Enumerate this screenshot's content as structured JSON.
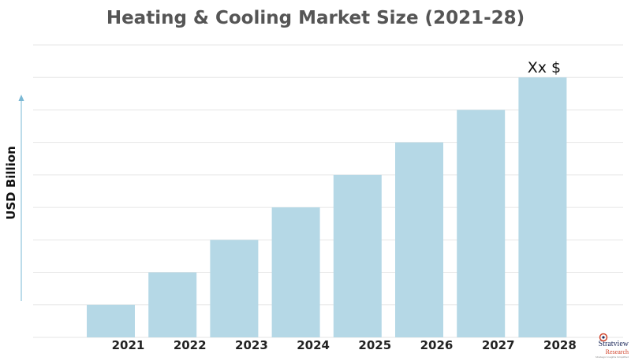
{
  "chart_data": {
    "type": "bar",
    "title": "Heating & Cooling Market Size (2021-28)",
    "xlabel": "",
    "ylabel": "USD Billion",
    "categories": [
      "2021",
      "2022",
      "2023",
      "2024",
      "2025",
      "2026",
      "2027",
      "2028"
    ],
    "values": [
      1,
      2,
      3,
      4,
      5,
      6,
      7,
      8
    ],
    "ylim": [
      0,
      9
    ],
    "grid": true,
    "y_tick_labels_shown": false,
    "annotations": [
      {
        "category": "2028",
        "text": "Xx $"
      }
    ],
    "colors": {
      "bar": "#b5d8e6",
      "grid": "#e6e6e6",
      "title": "#555555",
      "axis_arrow": "#7ab8d4"
    }
  },
  "logo": {
    "brand_line1": "Stratview",
    "brand_line2": "Research",
    "tagline": "Strategic Insights Simplified"
  }
}
